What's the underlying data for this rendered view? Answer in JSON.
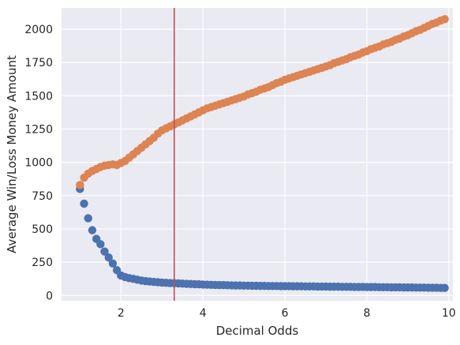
{
  "chart_data": {
    "type": "scatter",
    "xlabel": "Decimal Odds",
    "ylabel": "Average Win/Loss Money Amount",
    "xlim": [
      0.55,
      10.1
    ],
    "ylim": [
      -40,
      2160
    ],
    "xticks": [
      2,
      4,
      6,
      8,
      10
    ],
    "yticks": [
      0,
      250,
      500,
      750,
      1000,
      1250,
      1500,
      1750,
      2000
    ],
    "grid": true,
    "background": "#eaeaf2",
    "vline": {
      "x": 3.3,
      "color": "#c44e52"
    },
    "series": [
      {
        "color": "#4c72b0",
        "x": [
          1.0,
          1.1,
          1.2,
          1.3,
          1.4,
          1.5,
          1.6,
          1.7,
          1.8,
          1.9,
          2.0,
          2.1,
          2.2,
          2.3,
          2.4,
          2.5,
          2.6,
          2.7,
          2.8,
          2.9,
          3.0,
          3.1,
          3.2,
          3.3,
          3.4,
          3.5,
          3.6,
          3.7,
          3.8,
          3.9,
          4.0,
          4.1,
          4.2,
          4.3,
          4.4,
          4.5,
          4.6,
          4.7,
          4.8,
          4.9,
          5.0,
          5.1,
          5.2,
          5.3,
          5.4,
          5.5,
          5.6,
          5.7,
          5.8,
          5.9,
          6.0,
          6.1,
          6.2,
          6.3,
          6.4,
          6.5,
          6.6,
          6.7,
          6.8,
          6.9,
          7.0,
          7.1,
          7.2,
          7.3,
          7.4,
          7.5,
          7.6,
          7.7,
          7.8,
          7.9,
          8.0,
          8.1,
          8.2,
          8.3,
          8.4,
          8.5,
          8.6,
          8.7,
          8.8,
          8.9,
          9.0,
          9.1,
          9.2,
          9.3,
          9.4,
          9.5,
          9.6,
          9.7,
          9.8,
          9.9
        ],
        "values": [
          800,
          690,
          580,
          490,
          425,
          385,
          330,
          285,
          240,
          190,
          150,
          138,
          130,
          125,
          118,
          112,
          108,
          105,
          102,
          100,
          97,
          95,
          93,
          92,
          91,
          89,
          87,
          86,
          85,
          84,
          82,
          81,
          80,
          79,
          78,
          78,
          77,
          76,
          75,
          75,
          74,
          74,
          73,
          73,
          72,
          72,
          71,
          71,
          71,
          70,
          70,
          70,
          69,
          69,
          69,
          68,
          68,
          68,
          67,
          67,
          67,
          66,
          66,
          66,
          65,
          65,
          65,
          64,
          64,
          64,
          63,
          63,
          63,
          62,
          62,
          62,
          61,
          61,
          61,
          60,
          60,
          60,
          59,
          59,
          59,
          58,
          58,
          58,
          57,
          57
        ]
      },
      {
        "color": "#dd8452",
        "x": [
          1.0,
          1.1,
          1.2,
          1.3,
          1.4,
          1.5,
          1.6,
          1.7,
          1.8,
          1.9,
          2.0,
          2.1,
          2.2,
          2.3,
          2.4,
          2.5,
          2.6,
          2.7,
          2.8,
          2.9,
          3.0,
          3.1,
          3.2,
          3.3,
          3.4,
          3.5,
          3.6,
          3.7,
          3.8,
          3.9,
          4.0,
          4.1,
          4.2,
          4.3,
          4.4,
          4.5,
          4.6,
          4.7,
          4.8,
          4.9,
          5.0,
          5.1,
          5.2,
          5.3,
          5.4,
          5.5,
          5.6,
          5.7,
          5.8,
          5.9,
          6.0,
          6.1,
          6.2,
          6.3,
          6.4,
          6.5,
          6.6,
          6.7,
          6.8,
          6.9,
          7.0,
          7.1,
          7.2,
          7.3,
          7.4,
          7.5,
          7.6,
          7.7,
          7.8,
          7.9,
          8.0,
          8.1,
          8.2,
          8.3,
          8.4,
          8.5,
          8.6,
          8.7,
          8.8,
          8.9,
          9.0,
          9.1,
          9.2,
          9.3,
          9.4,
          9.5,
          9.6,
          9.7,
          9.8,
          9.9
        ],
        "values": [
          830,
          885,
          915,
          935,
          950,
          965,
          975,
          980,
          985,
          980,
          995,
          1010,
          1035,
          1060,
          1085,
          1110,
          1135,
          1160,
          1185,
          1215,
          1240,
          1255,
          1270,
          1285,
          1300,
          1315,
          1330,
          1345,
          1360,
          1375,
          1390,
          1405,
          1415,
          1425,
          1435,
          1445,
          1455,
          1465,
          1475,
          1485,
          1495,
          1510,
          1520,
          1530,
          1545,
          1555,
          1565,
          1580,
          1595,
          1605,
          1620,
          1630,
          1640,
          1650,
          1660,
          1670,
          1680,
          1690,
          1700,
          1710,
          1720,
          1730,
          1745,
          1755,
          1765,
          1775,
          1790,
          1800,
          1810,
          1825,
          1835,
          1850,
          1860,
          1870,
          1885,
          1895,
          1905,
          1920,
          1930,
          1945,
          1955,
          1970,
          1985,
          1995,
          2010,
          2025,
          2040,
          2050,
          2065,
          2075
        ]
      }
    ]
  }
}
